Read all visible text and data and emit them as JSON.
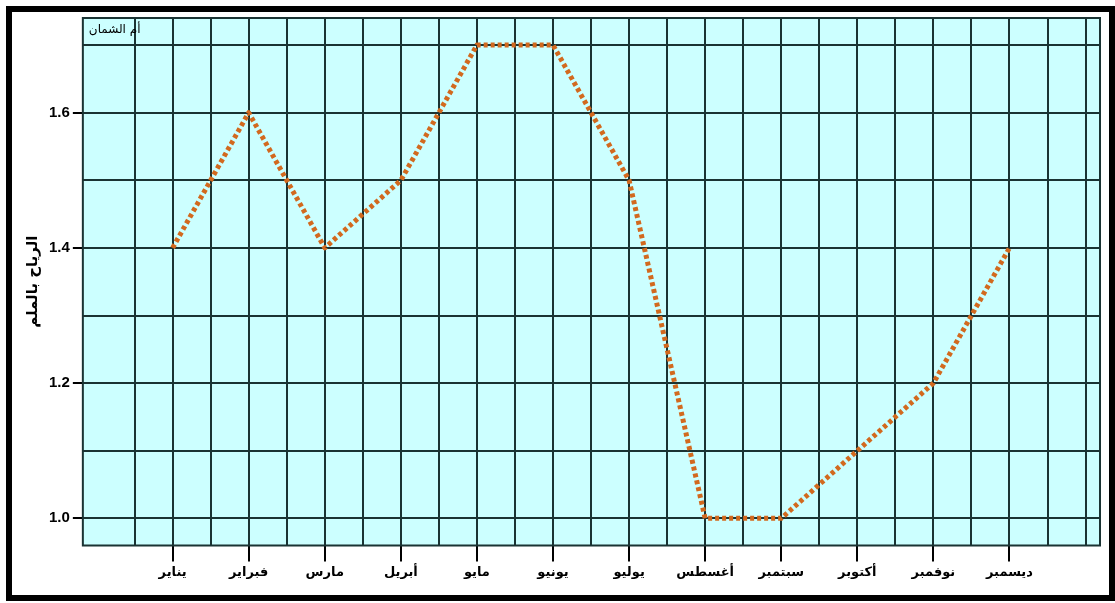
{
  "chart_data": {
    "type": "line",
    "annotations": [
      "أم الشمان"
    ],
    "ylabel": "الرياح بالملم",
    "categories": [
      "يناير",
      "فبراير",
      "مارس",
      "أبريل",
      "مايو",
      "يونيو",
      "يوليو",
      "أغسطس",
      "سبتمبر",
      "أكتوبر",
      "نوفمبر",
      "ديسمبر"
    ],
    "series": [
      {
        "color": "#d2691e",
        "values": [
          1.4,
          1.6,
          1.4,
          1.5,
          1.7,
          1.7,
          1.5,
          1.0,
          1.0,
          1.1,
          1.2,
          1.4
        ]
      }
    ],
    "ylim": [
      0.96,
      1.74
    ],
    "yticks": [
      {
        "value": 1.0,
        "label": "1.0"
      },
      {
        "value": 1.1,
        "label": null
      },
      1.2,
      {
        "value": 1.3,
        "label": null
      },
      1.4,
      {
        "value": 1.5,
        "label": null
      },
      1.6,
      {
        "value": 1.7,
        "label": null
      }
    ],
    "grid": true,
    "legend": false,
    "marker": "none",
    "line_style": "dotted"
  }
}
